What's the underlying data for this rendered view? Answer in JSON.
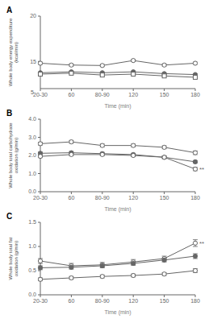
{
  "chart_data": [
    {
      "type": "line",
      "title": "A",
      "x_label": "Time (min)",
      "y_label": "Whole body energy expenditure\n(kcal/min)",
      "categories": [
        "20-30",
        "60",
        "80-90",
        "120",
        "150",
        "180"
      ],
      "ylim": [
        12.0,
        20.0
      ],
      "yticks": [
        15,
        20
      ],
      "grid": false,
      "annotations": [
        {
          "text": "5"
        }
      ],
      "series": [
        {
          "color": "#666666",
          "marker": "open_circle",
          "values": [
            14.8,
            14.6,
            14.55,
            15.1,
            14.6,
            14.8
          ],
          "errors": [
            0.12,
            0.12,
            0.12,
            0.12,
            0.12,
            0.12
          ]
        },
        {
          "color": "#666666",
          "marker": "circle",
          "values": [
            13.75,
            13.85,
            13.75,
            13.85,
            13.65,
            13.55
          ],
          "errors": [
            0.08,
            0.08,
            0.08,
            0.08,
            0.08,
            0.08
          ]
        },
        {
          "color": "#666666",
          "marker": "open_square",
          "values": [
            13.6,
            13.7,
            13.5,
            13.6,
            13.4,
            13.25
          ],
          "errors": [
            0.08,
            0.08,
            0.08,
            0.08,
            0.08,
            0.08
          ]
        }
      ]
    },
    {
      "type": "line",
      "title": "B",
      "x_label": "Time (min)",
      "y_label": "Whole body total carbohydrate\noxidation (g/min)",
      "categories": [
        "20-30",
        "60",
        "80-90",
        "120",
        "150",
        "180"
      ],
      "ylim": [
        0.0,
        4.0
      ],
      "yticks": [
        {
          "value": 0,
          "label": "0.0"
        },
        {
          "value": 1,
          "label": "1.0"
        },
        {
          "value": 2,
          "label": "2.0"
        },
        {
          "value": 3,
          "label": "3.0"
        },
        {
          "value": 4,
          "label": "4.0"
        }
      ],
      "grid": false,
      "series": [
        {
          "color": "#666666",
          "marker": "open_circle",
          "values": [
            2.65,
            2.75,
            2.55,
            2.55,
            2.45,
            2.15
          ],
          "errors": [
            0.08,
            0.08,
            0.08,
            0.08,
            0.08,
            0.1
          ]
        },
        {
          "color": "#666666",
          "marker": "circle",
          "values": [
            2.12,
            2.15,
            2.1,
            2.05,
            1.9,
            1.65
          ],
          "errors": [
            0.07,
            0.07,
            0.07,
            0.07,
            0.07,
            0.07
          ]
        },
        {
          "color": "#666666",
          "marker": "open_circle",
          "values": [
            1.95,
            2.05,
            2.05,
            2.0,
            1.9,
            1.25
          ],
          "errors": [
            0.07,
            0.07,
            0.07,
            0.07,
            0.07,
            0.09
          ],
          "annotation": "**"
        }
      ]
    },
    {
      "type": "line",
      "title": "C",
      "x_label": "Time (min)",
      "y_label": "Whole body total fat\noxidation (g/min)",
      "categories": [
        "20-30",
        "60",
        "80-90",
        "120",
        "150",
        "180"
      ],
      "ylim": [
        0.0,
        1.5
      ],
      "yticks": [
        {
          "value": 0,
          "label": "0.0"
        },
        0.5,
        {
          "value": 1,
          "label": "1.0"
        },
        1.5
      ],
      "grid": false,
      "series": [
        {
          "color": "#666666",
          "marker": "open_circle",
          "values": [
            0.7,
            0.6,
            0.62,
            0.68,
            0.75,
            1.07
          ],
          "errors": [
            0.05,
            0.05,
            0.05,
            0.05,
            0.05,
            0.07
          ],
          "annotation": "**"
        },
        {
          "color": "#666666",
          "marker": "circle",
          "values": [
            0.56,
            0.57,
            0.6,
            0.65,
            0.72,
            0.8
          ],
          "errors": [
            0.04,
            0.04,
            0.04,
            0.04,
            0.04,
            0.05
          ]
        },
        {
          "color": "#666666",
          "marker": "open_circle",
          "values": [
            0.32,
            0.35,
            0.38,
            0.4,
            0.43,
            0.5
          ],
          "errors": [
            0.03,
            0.03,
            0.03,
            0.03,
            0.03,
            0.04
          ]
        }
      ]
    }
  ]
}
